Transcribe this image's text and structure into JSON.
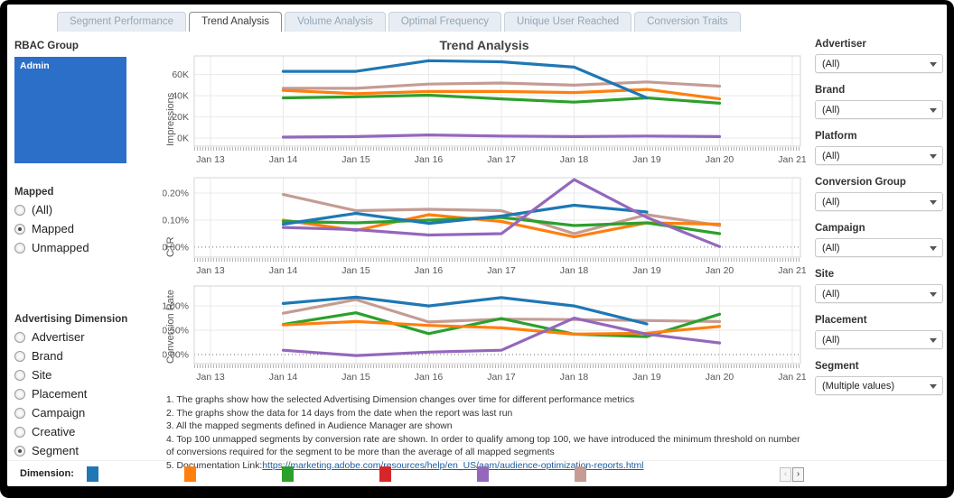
{
  "tabs": [
    {
      "label": "Segment Performance",
      "active": false
    },
    {
      "label": "Trend Analysis",
      "active": true
    },
    {
      "label": "Volume Analysis",
      "active": false
    },
    {
      "label": "Optimal Frequency",
      "active": false
    },
    {
      "label": "Unique User Reached",
      "active": false
    },
    {
      "label": "Conversion Traits",
      "active": false
    }
  ],
  "left_panel": {
    "rbac": {
      "label": "RBAC Group",
      "value": "Admin",
      "color": "#2c6fc9"
    },
    "mapped": {
      "label": "Mapped",
      "options": [
        "(All)",
        "Mapped",
        "Unmapped"
      ],
      "selected": "Mapped"
    },
    "advertising_dimension": {
      "label": "Advertising Dimension",
      "options": [
        "Advertiser",
        "Brand",
        "Site",
        "Placement",
        "Campaign",
        "Creative",
        "Segment"
      ],
      "selected": "Segment"
    }
  },
  "main": {
    "title": "Trend Analysis"
  },
  "filters": [
    {
      "label": "Advertiser",
      "value": "(All)"
    },
    {
      "label": "Brand",
      "value": "(All)"
    },
    {
      "label": "Platform",
      "value": "(All)"
    },
    {
      "label": "Conversion Group",
      "value": "(All)"
    },
    {
      "label": "Campaign",
      "value": "(All)"
    },
    {
      "label": "Site",
      "value": "(All)"
    },
    {
      "label": "Placement",
      "value": "(All)"
    },
    {
      "label": "Segment",
      "value": "(Multiple values)"
    }
  ],
  "chart_data": [
    {
      "type": "line",
      "title": "Trend Analysis",
      "ylabel": "Impressions",
      "x": [
        "Jan 13",
        "Jan 14",
        "Jan 15",
        "Jan 16",
        "Jan 17",
        "Jan 18",
        "Jan 19",
        "Jan 20",
        "Jan 21"
      ],
      "ylim": [
        -7.5,
        77.5
      ],
      "unit": "K impressions",
      "grid": true,
      "legend": "bottom-color-swatches",
      "yticks": [
        {
          "v": 0,
          "label": "0K"
        },
        {
          "v": 20,
          "label": "20K"
        },
        {
          "v": 40,
          "label": "40K"
        },
        {
          "v": 60,
          "label": "60K"
        }
      ],
      "zero_line_dotted": false,
      "series": [
        {
          "name": "blue",
          "color": "#1f77b4",
          "values": [
            null,
            63,
            63,
            73,
            72,
            67,
            38,
            null,
            null
          ]
        },
        {
          "name": "orange",
          "color": "#ff7f0e",
          "values": [
            null,
            45,
            42,
            44,
            44,
            43,
            46,
            37,
            null
          ]
        },
        {
          "name": "green",
          "color": "#2ca02c",
          "values": [
            null,
            38,
            39,
            40.5,
            37,
            34,
            38,
            33,
            null
          ]
        },
        {
          "name": "purple",
          "color": "#9467bd",
          "values": [
            null,
            1,
            1.5,
            3,
            2,
            1.5,
            2,
            1.5,
            null
          ]
        },
        {
          "name": "brown",
          "color": "#c49c94",
          "values": [
            null,
            47,
            47,
            51,
            52,
            50,
            53,
            49,
            null
          ]
        }
      ],
      "zorder": [
        "brown",
        "purple",
        "green",
        "orange",
        "blue"
      ]
    },
    {
      "type": "line",
      "title": "",
      "ylabel": "CTR",
      "x": [
        "Jan 13",
        "Jan 14",
        "Jan 15",
        "Jan 16",
        "Jan 17",
        "Jan 18",
        "Jan 19",
        "Jan 20",
        "Jan 21"
      ],
      "ylim": [
        -0.037,
        0.257
      ],
      "unit": "%",
      "grid": true,
      "yticks": [
        {
          "v": 0,
          "label": "0.00%"
        },
        {
          "v": 0.1,
          "label": "0.10%"
        },
        {
          "v": 0.2,
          "label": "0.20%"
        }
      ],
      "zero_line_dotted": true,
      "series": [
        {
          "name": "blue",
          "color": "#1f77b4",
          "values": [
            null,
            0.085,
            0.125,
            0.088,
            0.115,
            0.155,
            0.13,
            null,
            null
          ]
        },
        {
          "name": "orange",
          "color": "#ff7f0e",
          "values": [
            null,
            0.1,
            0.062,
            0.12,
            0.095,
            0.038,
            0.09,
            0.085,
            null
          ]
        },
        {
          "name": "green",
          "color": "#2ca02c",
          "values": [
            null,
            0.095,
            0.09,
            0.1,
            0.11,
            0.08,
            0.09,
            0.05,
            null
          ]
        },
        {
          "name": "purple",
          "color": "#9467bd",
          "values": [
            null,
            0.073,
            0.065,
            0.045,
            0.05,
            0.25,
            0.11,
            0.002,
            null
          ]
        },
        {
          "name": "brown",
          "color": "#c49c94",
          "values": [
            null,
            0.195,
            0.135,
            0.14,
            0.135,
            0.05,
            0.12,
            0.08,
            null
          ]
        }
      ],
      "zorder": [
        "brown",
        "orange",
        "green",
        "blue",
        "purple"
      ]
    },
    {
      "type": "line",
      "title": "",
      "ylabel": "Conversion Rate",
      "x": [
        "Jan 13",
        "Jan 14",
        "Jan 15",
        "Jan 16",
        "Jan 17",
        "Jan 18",
        "Jan 19",
        "Jan 20",
        "Jan 21"
      ],
      "ylim": [
        -0.185,
        1.41
      ],
      "unit": "%",
      "grid": true,
      "yticks": [
        {
          "v": 0,
          "label": "0.00%"
        },
        {
          "v": 0.5,
          "label": "0.50%"
        },
        {
          "v": 1.0,
          "label": "1.00%"
        }
      ],
      "zero_line_dotted": true,
      "series": [
        {
          "name": "blue",
          "color": "#1f77b4",
          "values": [
            null,
            1.05,
            1.18,
            1.0,
            1.17,
            1.0,
            0.63,
            null,
            null
          ]
        },
        {
          "name": "orange",
          "color": "#ff7f0e",
          "values": [
            null,
            0.61,
            0.68,
            0.6,
            0.55,
            0.42,
            0.44,
            0.58,
            null
          ]
        },
        {
          "name": "green",
          "color": "#2ca02c",
          "values": [
            null,
            0.62,
            0.86,
            0.43,
            0.74,
            0.42,
            0.37,
            0.83,
            null
          ]
        },
        {
          "name": "purple",
          "color": "#9467bd",
          "values": [
            null,
            0.09,
            -0.02,
            0.05,
            0.09,
            0.75,
            0.42,
            0.24,
            null
          ]
        },
        {
          "name": "brown",
          "color": "#c49c94",
          "values": [
            null,
            0.85,
            1.13,
            0.67,
            0.73,
            0.72,
            0.7,
            0.68,
            null
          ]
        }
      ],
      "zorder": [
        "brown",
        "green",
        "orange",
        "purple",
        "blue"
      ]
    }
  ],
  "notes": [
    "1.  The graphs show how the selected Advertising Dimension changes over time for different performance metrics",
    "2. The graphs show the data for 14 days from the date when the report was last run",
    "3. All the mapped segments defined in Audience Manager are shown",
    "4. Top 100 unmapped segments by conversion rate are shown. In order to qualify among top 100, we have introduced the minimum threshold on number of conversions required for the segment to be more than the average of all mapped segments"
  ],
  "doc_note": {
    "prefix": "5. Documentation Link:",
    "url": "https://marketing.adobe.com/resources/help/en_US/aam/audience-optimization-reports.html"
  },
  "footer": {
    "label": "Dimension:",
    "legend_colors": [
      "#1f77b4",
      "#ff7f0e",
      "#2ca02c",
      "#d62728",
      "#9467bd",
      "#c49c94"
    ],
    "pager_prev": "‹",
    "pager_next": "›"
  }
}
